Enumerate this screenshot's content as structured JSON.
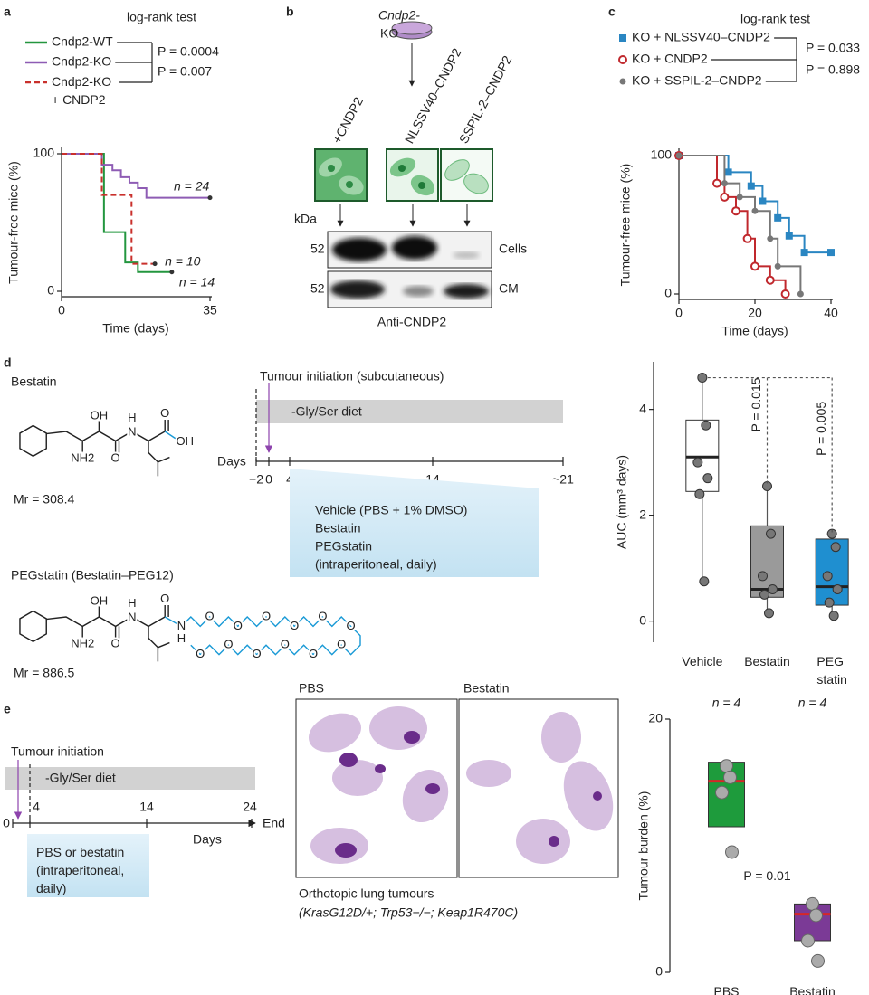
{
  "panel_labels": [
    "a",
    "b",
    "c",
    "d",
    "e"
  ],
  "chart_data": [
    {
      "type": "step",
      "annotation": "log-rank test",
      "p_values": [
        "P = 0.0004",
        "P = 0.007"
      ],
      "xlabel": "Time (days)",
      "ylabel": "Tumour-free mice (%)",
      "xlim": [
        0,
        35
      ],
      "ylim": [
        0,
        100
      ],
      "xticks": [
        0,
        35
      ],
      "yticks": [
        0,
        100
      ],
      "series": [
        {
          "name": "Cndp2-WT",
          "color": "#23963f",
          "x": [
            0,
            10,
            15,
            18,
            26
          ],
          "values": [
            100,
            43,
            21,
            14,
            14
          ],
          "label": "n = 14"
        },
        {
          "name": "Cndp2-KO",
          "color": "#8e5cb4",
          "x": [
            0,
            9.5,
            12,
            14,
            16,
            18,
            20,
            35
          ],
          "values": [
            100,
            92,
            88,
            83,
            79,
            75,
            68,
            68
          ],
          "label": "n = 24"
        },
        {
          "name": "Cndp2-KO + CNDP2",
          "color": "#c9302c",
          "dash": true,
          "x": [
            0,
            9.5,
            16.5,
            22
          ],
          "values": [
            100,
            70,
            20,
            20
          ],
          "label": "n = 10"
        }
      ]
    },
    {
      "type": "step",
      "annotation": "log-rank test",
      "p_values": [
        "P = 0.033",
        "P = 0.898"
      ],
      "xlabel": "Time (days)",
      "ylabel": "Tumour-free mice (%)",
      "xlim": [
        0,
        40
      ],
      "ylim": [
        0,
        100
      ],
      "xticks": [
        0,
        20,
        40
      ],
      "yticks": [
        0,
        100
      ],
      "series": [
        {
          "name": "KO + NLSSV40–CNDP2",
          "color": "#2a86c2",
          "marker": "square",
          "x": [
            0,
            13,
            19,
            22,
            26,
            29,
            33,
            40
          ],
          "values": [
            100,
            88,
            78,
            67,
            55,
            42,
            30,
            30
          ]
        },
        {
          "name": "KO + CNDP2",
          "color": "#c0282d",
          "marker": "circle-open",
          "x": [
            0,
            10,
            12,
            15,
            18,
            20,
            24,
            28
          ],
          "values": [
            100,
            80,
            70,
            60,
            40,
            20,
            10,
            0
          ]
        },
        {
          "name": "KO + SSPIL-2–CNDP2",
          "color": "#777777",
          "marker": "circle",
          "x": [
            0,
            12,
            16,
            20,
            24,
            26,
            32
          ],
          "values": [
            100,
            80,
            70,
            60,
            40,
            20,
            0
          ]
        }
      ]
    },
    {
      "type": "box",
      "ylabel": "AUC (mm³ days)",
      "ylim": [
        -0.4,
        4.9
      ],
      "yticks": [
        0,
        2,
        4
      ],
      "categories": [
        "Vehicle",
        "Bestatin",
        "PEG statin"
      ],
      "median_color": "#222222",
      "boxes": [
        {
          "color": "#ffffff",
          "q1": 2.45,
          "median": 3.1,
          "q3": 3.8,
          "whisker_low": 0.75,
          "whisker_high": 4.6,
          "points": [
            4.6,
            3.7,
            3.0,
            2.7,
            2.4,
            0.75
          ]
        },
        {
          "color": "#9a9a9a",
          "q1": 0.45,
          "median": 0.6,
          "q3": 1.8,
          "whisker_low": 0.15,
          "whisker_high": 2.55,
          "points": [
            2.55,
            1.65,
            0.85,
            0.6,
            0.5,
            0.15
          ]
        },
        {
          "color": "#1f8fd0",
          "q1": 0.3,
          "median": 0.65,
          "q3": 1.55,
          "whisker_low": 0.1,
          "whisker_high": 1.65,
          "points": [
            1.65,
            1.4,
            0.85,
            0.6,
            0.35,
            0.1
          ]
        }
      ],
      "annotations": [
        "P = 0.015",
        "P = 0.005"
      ]
    },
    {
      "type": "box",
      "ylabel": "Tumour burden (%)",
      "ylim": [
        0,
        20
      ],
      "yticks": [
        0,
        20
      ],
      "categories": [
        "PBS",
        "Bestatin"
      ],
      "median_color": "#d62728",
      "boxes": [
        {
          "color": "#1e9b3c",
          "q1": 11.5,
          "median": 15.1,
          "q3": 16.6,
          "points": [
            16.3,
            15.4,
            14.2,
            9.5
          ]
        },
        {
          "color": "#7b3a96",
          "q1": 2.5,
          "median": 4.6,
          "q3": 5.4,
          "points": [
            5.4,
            4.5,
            2.5,
            0.9
          ]
        }
      ],
      "n_labels": [
        "n = 4",
        "n = 4"
      ],
      "annotations": [
        "P = 0.01"
      ]
    }
  ],
  "panel_b": {
    "strain_lines": [
      "Cndp2-",
      "KO"
    ],
    "lanes": [
      "+CNDP2",
      "NLSSV40–CNDP2",
      "SSPIL-2–CNDP2"
    ],
    "kda": "kDa",
    "markers": [
      "52",
      "52"
    ],
    "blots": [
      "Cells",
      "CM"
    ],
    "antibody": "Anti-CNDP2"
  },
  "panel_d": {
    "compounds": [
      {
        "name": "Bestatin",
        "mr": "Mr = 308.4",
        "atoms": [
          "OH",
          "NH2",
          "O",
          "H",
          "N",
          "O",
          "OH"
        ]
      },
      {
        "name": "PEGstatin (Bestatin–PEG12)",
        "mr": "Mr = 886.5",
        "atoms": [
          "OH",
          "NH2",
          "O",
          "H",
          "N",
          "O",
          "N",
          "H",
          "O",
          "O",
          "O",
          "O",
          "O",
          "O",
          "O",
          "O",
          "O",
          "O",
          "O",
          "O"
        ]
      }
    ],
    "timeline": {
      "initiation": "Tumour initiation (subcutaneous)",
      "diet": "-Gly/Ser diet",
      "axis_label": "Days",
      "ticks": [
        "−2",
        "0",
        "4",
        "14",
        "~21"
      ],
      "treatments": [
        "Vehicle (PBS + 1% DMSO)",
        "Bestatin",
        "PEGstatin",
        "(intraperitoneal, daily)"
      ]
    }
  },
  "panel_e": {
    "timeline": {
      "initiation": "Tumour initiation",
      "diet": "-Gly/Ser diet",
      "ticks": [
        "0",
        "4",
        "14",
        "24"
      ],
      "end": "End",
      "axis_label": "Days",
      "treatment": "PBS or bestatin (intraperitoneal, daily)"
    },
    "histology": {
      "panels": [
        "PBS",
        "Bestatin"
      ],
      "caption": "Orthotopic lung tumours",
      "genotype": "(KrasG12D/+; Trp53−/−; Keap1R470C)"
    }
  }
}
